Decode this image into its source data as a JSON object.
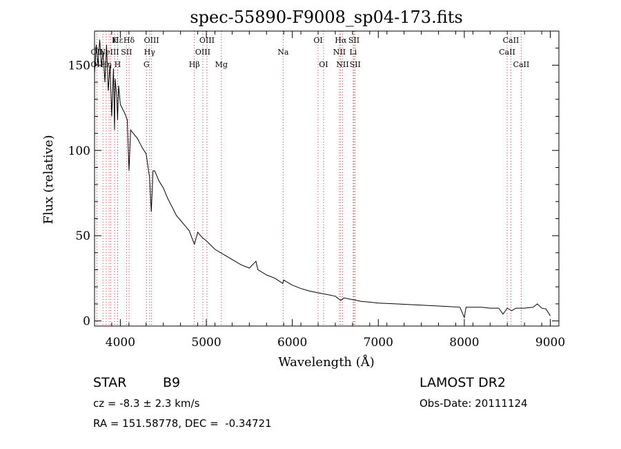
{
  "chart_data": {
    "type": "line",
    "title": "spec-55890-F9008_sp04-173.fits",
    "xlabel": "Wavelength (Å)",
    "ylabel": "Flux (relative)",
    "xlim": [
      3700,
      9100
    ],
    "ylim": [
      -3,
      170
    ],
    "x_ticks": [
      4000,
      5000,
      6000,
      7000,
      8000,
      9000
    ],
    "y_ticks": [
      0,
      50,
      100,
      150
    ],
    "grid": false,
    "series": [
      {
        "color": "#000000",
        "x": [
          3700,
          3720,
          3740,
          3760,
          3780,
          3800,
          3820,
          3840,
          3860,
          3880,
          3900,
          3920,
          3933,
          3940,
          3960,
          3968,
          3980,
          4000,
          4020,
          4050,
          4080,
          4101,
          4120,
          4150,
          4200,
          4250,
          4300,
          4340,
          4360,
          4380,
          4400,
          4450,
          4500,
          4550,
          4600,
          4650,
          4700,
          4750,
          4800,
          4861,
          4900,
          4950,
          5000,
          5100,
          5200,
          5300,
          5400,
          5500,
          5577,
          5600,
          5700,
          5800,
          5890,
          5900,
          6000,
          6100,
          6200,
          6300,
          6400,
          6500,
          6563,
          6600,
          6700,
          6800,
          6900,
          7000,
          7200,
          7400,
          7600,
          7800,
          7950,
          8000,
          8020,
          8100,
          8200,
          8300,
          8400,
          8450,
          8500,
          8550,
          8600,
          8700,
          8800,
          8850,
          8900,
          8950,
          9000
        ],
        "y": [
          145,
          162,
          150,
          165,
          150,
          158,
          140,
          162,
          135,
          150,
          120,
          148,
          112,
          142,
          130,
          118,
          138,
          127,
          125,
          122,
          118,
          88,
          112,
          110,
          107,
          102,
          98,
          84,
          64,
          88,
          88,
          82,
          78,
          72,
          67,
          62,
          59,
          56,
          53,
          45,
          52,
          49,
          47,
          42,
          39,
          36,
          33,
          31,
          35,
          30,
          27,
          25,
          22,
          24,
          21,
          19,
          17.5,
          16.5,
          15.5,
          14.5,
          12,
          13.5,
          12.5,
          11.5,
          11,
          10.5,
          10,
          9.5,
          9,
          8.5,
          8,
          2,
          8,
          8,
          8,
          7.5,
          7.5,
          4,
          7.5,
          6,
          7.5,
          7.5,
          8,
          10,
          7.5,
          7,
          3
        ]
      }
    ],
    "line_labels": [
      {
        "text": "Hε",
        "row": 1,
        "wl": 3970
      },
      {
        "text": "K",
        "row": 1,
        "wl": 3933
      },
      {
        "text": "Hδ",
        "row": 1,
        "wl": 4101
      },
      {
        "text": "OIII",
        "row": 1,
        "wl": 4363
      },
      {
        "text": "OIII",
        "row": 1,
        "wl": 5007
      },
      {
        "text": "OI",
        "row": 1,
        "wl": 6300
      },
      {
        "text": "Hα",
        "row": 1,
        "wl": 6563
      },
      {
        "text": "SII",
        "row": 1,
        "wl": 6717
      },
      {
        "text": "CaII",
        "row": 1,
        "wl": 8542
      },
      {
        "text": "OII",
        "row": 2,
        "wl": 3727
      },
      {
        "text": "NeIII",
        "row": 2,
        "wl": 3869
      },
      {
        "text": "SII",
        "row": 2,
        "wl": 4072
      },
      {
        "text": "Hγ",
        "row": 2,
        "wl": 4340
      },
      {
        "text": "OIII",
        "row": 2,
        "wl": 4959
      },
      {
        "text": "Na",
        "row": 2,
        "wl": 5893
      },
      {
        "text": "NII",
        "row": 2,
        "wl": 6548
      },
      {
        "text": "Li",
        "row": 2,
        "wl": 6708
      },
      {
        "text": "CaII",
        "row": 2,
        "wl": 8498
      },
      {
        "text": "OII",
        "row": 3,
        "wl": 3727
      },
      {
        "text": "Hη",
        "row": 3,
        "wl": 3835
      },
      {
        "text": "H",
        "row": 3,
        "wl": 3968
      },
      {
        "text": "G",
        "row": 3,
        "wl": 4304
      },
      {
        "text": "Hβ",
        "row": 3,
        "wl": 4861
      },
      {
        "text": "Mg",
        "row": 3,
        "wl": 5175
      },
      {
        "text": "OI",
        "row": 3,
        "wl": 6363
      },
      {
        "text": "NII",
        "row": 3,
        "wl": 6584
      },
      {
        "text": "SII",
        "row": 3,
        "wl": 6731
      },
      {
        "text": "CaII",
        "row": 3,
        "wl": 8662
      }
    ],
    "marker_lines": [
      3727,
      3798,
      3835,
      3869,
      3889,
      3933,
      3968,
      3970,
      4072,
      4101,
      4304,
      4340,
      4363,
      4861,
      4959,
      5007,
      5175,
      5893,
      6300,
      6363,
      6548,
      6563,
      6584,
      6708,
      6717,
      6731,
      8498,
      8542,
      8662
    ],
    "marker_color": "#c0392b"
  },
  "footer": {
    "object": "STAR",
    "subclass": "B9",
    "survey": "LAMOST DR2",
    "redshift": "cz = -8.3 ± 2.3 km/s",
    "obs_date": "Obs-Date: 20111124",
    "coords": "RA = 151.58778, DEC =  -0.34721"
  }
}
